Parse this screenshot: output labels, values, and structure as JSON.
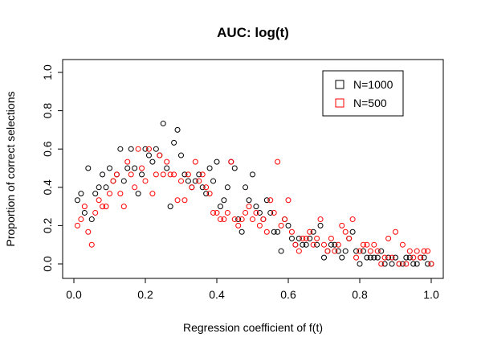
{
  "chart_data": {
    "type": "scatter",
    "title": "AUC: log(t)",
    "xlabel": "Regression coefficient of f(t)",
    "ylabel": "Proportion of correct selections",
    "xlim": [
      0,
      1.0
    ],
    "ylim": [
      0,
      1.0
    ],
    "x_ticks": [
      "0.0",
      "0.2",
      "0.4",
      "0.6",
      "0.8",
      "1.0"
    ],
    "y_ticks": [
      "0.0",
      "0.2",
      "0.4",
      "0.6",
      "0.8",
      "1.0"
    ],
    "grid": false,
    "legend_position": "top-right",
    "series": [
      {
        "name": "N=1000",
        "color": "#000000",
        "marker": "open-circle",
        "points": [
          [
            0.01,
            0.333
          ],
          [
            0.02,
            0.367
          ],
          [
            0.03,
            0.267
          ],
          [
            0.04,
            0.5
          ],
          [
            0.05,
            0.233
          ],
          [
            0.06,
            0.367
          ],
          [
            0.07,
            0.4
          ],
          [
            0.08,
            0.467
          ],
          [
            0.09,
            0.4
          ],
          [
            0.1,
            0.5
          ],
          [
            0.11,
            0.433
          ],
          [
            0.12,
            0.467
          ],
          [
            0.13,
            0.6
          ],
          [
            0.14,
            0.433
          ],
          [
            0.15,
            0.5
          ],
          [
            0.16,
            0.6
          ],
          [
            0.17,
            0.5
          ],
          [
            0.18,
            0.367
          ],
          [
            0.19,
            0.467
          ],
          [
            0.2,
            0.6
          ],
          [
            0.21,
            0.567
          ],
          [
            0.22,
            0.533
          ],
          [
            0.23,
            0.6
          ],
          [
            0.24,
            0.567
          ],
          [
            0.25,
            0.733
          ],
          [
            0.26,
            0.5
          ],
          [
            0.27,
            0.3
          ],
          [
            0.28,
            0.633
          ],
          [
            0.29,
            0.7
          ],
          [
            0.3,
            0.567
          ],
          [
            0.31,
            0.467
          ],
          [
            0.32,
            0.433
          ],
          [
            0.33,
            0.4
          ],
          [
            0.34,
            0.433
          ],
          [
            0.35,
            0.467
          ],
          [
            0.36,
            0.4
          ],
          [
            0.37,
            0.367
          ],
          [
            0.38,
            0.5
          ],
          [
            0.39,
            0.433
          ],
          [
            0.4,
            0.533
          ],
          [
            0.41,
            0.3
          ],
          [
            0.42,
            0.333
          ],
          [
            0.43,
            0.4
          ],
          [
            0.44,
            0.533
          ],
          [
            0.45,
            0.5
          ],
          [
            0.46,
            0.233
          ],
          [
            0.47,
            0.167
          ],
          [
            0.48,
            0.4
          ],
          [
            0.49,
            0.333
          ],
          [
            0.5,
            0.467
          ],
          [
            0.51,
            0.3
          ],
          [
            0.52,
            0.267
          ],
          [
            0.53,
            0.233
          ],
          [
            0.54,
            0.333
          ],
          [
            0.55,
            0.267
          ],
          [
            0.56,
            0.167
          ],
          [
            0.57,
            0.167
          ],
          [
            0.58,
            0.067
          ],
          [
            0.59,
            0.233
          ],
          [
            0.6,
            0.2
          ],
          [
            0.61,
            0.133
          ],
          [
            0.62,
            0.1
          ],
          [
            0.63,
            0.133
          ],
          [
            0.64,
            0.1
          ],
          [
            0.65,
            0.1
          ],
          [
            0.66,
            0.133
          ],
          [
            0.67,
            0.167
          ],
          [
            0.68,
            0.1
          ],
          [
            0.69,
            0.2
          ],
          [
            0.7,
            0.033
          ],
          [
            0.71,
            0.067
          ],
          [
            0.72,
            0.1
          ],
          [
            0.73,
            0.1
          ],
          [
            0.74,
            0.067
          ],
          [
            0.75,
            0.033
          ],
          [
            0.76,
            0.067
          ],
          [
            0.77,
            0.133
          ],
          [
            0.78,
            0.167
          ],
          [
            0.79,
            0.067
          ],
          [
            0.8,
            0.0
          ],
          [
            0.81,
            0.067
          ],
          [
            0.82,
            0.033
          ],
          [
            0.83,
            0.033
          ],
          [
            0.84,
            0.033
          ],
          [
            0.85,
            0.033
          ],
          [
            0.86,
            0.067
          ],
          [
            0.87,
            0.0
          ],
          [
            0.88,
            0.033
          ],
          [
            0.89,
            0.0
          ],
          [
            0.9,
            0.033
          ],
          [
            0.91,
            0.0
          ],
          [
            0.92,
            0.0
          ],
          [
            0.93,
            0.033
          ],
          [
            0.94,
            0.033
          ],
          [
            0.95,
            0.0
          ],
          [
            0.96,
            0.0
          ],
          [
            0.97,
            0.033
          ],
          [
            0.98,
            0.033
          ],
          [
            0.99,
            0.0
          ],
          [
            1.0,
            0.0
          ]
        ]
      },
      {
        "name": "N=500",
        "color": "#ff0000",
        "marker": "open-circle",
        "points": [
          [
            0.01,
            0.2
          ],
          [
            0.02,
            0.233
          ],
          [
            0.03,
            0.3
          ],
          [
            0.04,
            0.167
          ],
          [
            0.05,
            0.1
          ],
          [
            0.06,
            0.267
          ],
          [
            0.07,
            0.333
          ],
          [
            0.08,
            0.3
          ],
          [
            0.09,
            0.3
          ],
          [
            0.1,
            0.367
          ],
          [
            0.11,
            0.433
          ],
          [
            0.12,
            0.467
          ],
          [
            0.13,
            0.367
          ],
          [
            0.14,
            0.3
          ],
          [
            0.15,
            0.533
          ],
          [
            0.16,
            0.467
          ],
          [
            0.17,
            0.4
          ],
          [
            0.18,
            0.6
          ],
          [
            0.19,
            0.5
          ],
          [
            0.2,
            0.433
          ],
          [
            0.21,
            0.6
          ],
          [
            0.22,
            0.367
          ],
          [
            0.23,
            0.467
          ],
          [
            0.24,
            0.567
          ],
          [
            0.25,
            0.467
          ],
          [
            0.26,
            0.533
          ],
          [
            0.27,
            0.467
          ],
          [
            0.28,
            0.467
          ],
          [
            0.29,
            0.333
          ],
          [
            0.3,
            0.433
          ],
          [
            0.31,
            0.333
          ],
          [
            0.32,
            0.467
          ],
          [
            0.33,
            0.4
          ],
          [
            0.34,
            0.533
          ],
          [
            0.35,
            0.433
          ],
          [
            0.36,
            0.467
          ],
          [
            0.37,
            0.4
          ],
          [
            0.38,
            0.367
          ],
          [
            0.39,
            0.267
          ],
          [
            0.4,
            0.267
          ],
          [
            0.41,
            0.233
          ],
          [
            0.42,
            0.233
          ],
          [
            0.43,
            0.267
          ],
          [
            0.44,
            0.533
          ],
          [
            0.45,
            0.233
          ],
          [
            0.46,
            0.2
          ],
          [
            0.47,
            0.233
          ],
          [
            0.48,
            0.267
          ],
          [
            0.49,
            0.3
          ],
          [
            0.5,
            0.233
          ],
          [
            0.51,
            0.267
          ],
          [
            0.52,
            0.2
          ],
          [
            0.53,
            0.233
          ],
          [
            0.54,
            0.167
          ],
          [
            0.55,
            0.333
          ],
          [
            0.56,
            0.267
          ],
          [
            0.57,
            0.533
          ],
          [
            0.58,
            0.2
          ],
          [
            0.59,
            0.233
          ],
          [
            0.6,
            0.333
          ],
          [
            0.61,
            0.167
          ],
          [
            0.62,
            0.1
          ],
          [
            0.63,
            0.067
          ],
          [
            0.64,
            0.133
          ],
          [
            0.65,
            0.133
          ],
          [
            0.66,
            0.167
          ],
          [
            0.67,
            0.1
          ],
          [
            0.68,
            0.133
          ],
          [
            0.69,
            0.233
          ],
          [
            0.7,
            0.1
          ],
          [
            0.71,
            0.067
          ],
          [
            0.72,
            0.133
          ],
          [
            0.73,
            0.067
          ],
          [
            0.74,
            0.1
          ],
          [
            0.75,
            0.2
          ],
          [
            0.76,
            0.167
          ],
          [
            0.77,
            0.133
          ],
          [
            0.78,
            0.233
          ],
          [
            0.79,
            0.033
          ],
          [
            0.8,
            0.067
          ],
          [
            0.81,
            0.1
          ],
          [
            0.82,
            0.1
          ],
          [
            0.83,
            0.067
          ],
          [
            0.84,
            0.1
          ],
          [
            0.85,
            0.067
          ],
          [
            0.86,
            0.0
          ],
          [
            0.87,
            0.033
          ],
          [
            0.88,
            0.133
          ],
          [
            0.89,
            0.033
          ],
          [
            0.9,
            0.167
          ],
          [
            0.91,
            0.0
          ],
          [
            0.92,
            0.1
          ],
          [
            0.93,
            0.0
          ],
          [
            0.94,
            0.067
          ],
          [
            0.95,
            0.033
          ],
          [
            0.96,
            0.067
          ],
          [
            0.97,
            0.033
          ],
          [
            0.98,
            0.067
          ],
          [
            0.99,
            0.067
          ],
          [
            1.0,
            0.0
          ]
        ]
      }
    ]
  }
}
